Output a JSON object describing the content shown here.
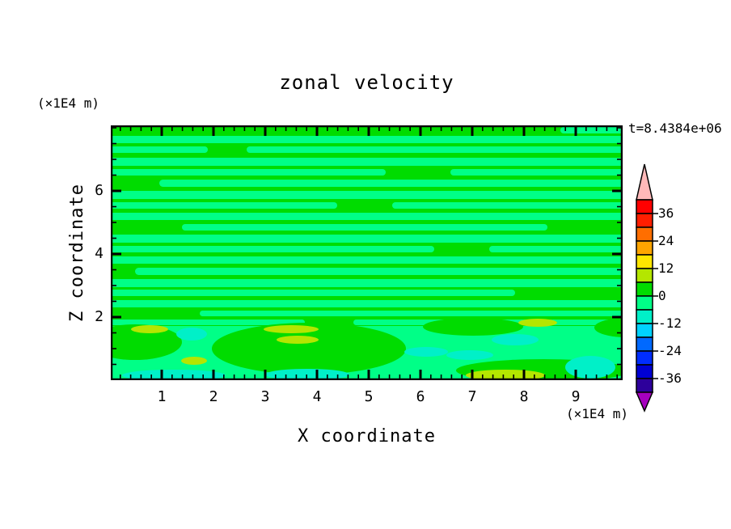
{
  "title": "zonal velocity",
  "timestamp": "t=8.4384e+06",
  "axes": {
    "x_label": "X coordinate",
    "x_unit": "(×1E4 m)",
    "y_label": "Z coordinate",
    "y_unit": "(×1E4 m)",
    "x_tick_labels": [
      "1",
      "2",
      "3",
      "4",
      "5",
      "6",
      "7",
      "8",
      "9"
    ],
    "y_tick_labels": [
      "2",
      "4",
      "6"
    ]
  },
  "colorbar": {
    "tick_labels": [
      "36",
      "24",
      "12",
      "0",
      "-12",
      "-24",
      "-36"
    ],
    "box_colors": [
      "#FF0000",
      "#FF1E00",
      "#FF6E00",
      "#FFA500",
      "#FFE600",
      "#B4E600",
      "#00DC00",
      "#00FF87",
      "#00F0C8",
      "#00D2FF",
      "#0069FF",
      "#002DFF",
      "#0000D2",
      "#2D009B"
    ],
    "over_arrow_color": "#FFB9B9",
    "under_arrow_color": "#A500BE"
  },
  "chart_data": {
    "type": "heatmap",
    "title": "zonal velocity",
    "xlabel": "X coordinate (×1E4 m)",
    "ylabel": "Z coordinate (×1E4 m)",
    "time": "t=8.4384e+06",
    "x_range": [
      0,
      9.9
    ],
    "z_range": [
      0,
      8.1
    ],
    "x_major_ticks": [
      1,
      2,
      3,
      4,
      5,
      6,
      7,
      8,
      9
    ],
    "z_major_ticks": [
      2,
      4,
      6
    ],
    "colorbar_tick_values": [
      36,
      24,
      12,
      0,
      -12,
      -24,
      -36
    ],
    "contour_interval": 6,
    "legend_position": "right",
    "grid": false,
    "description": "Filled-contour plot of zonal velocity. The field oscillates around 0: alternating horizontal streaks of the 0..+6 band (green) and the -6..0 band (spring green) fill most of the domain; in the lower quarter a few patches reach -12..-6 (turquoise) and +6..+12 (yellow-green).",
    "palette": {
      "pos_band": "#00DC00",
      "neg_band": "#00FF87",
      "neg_patch": "#00F0C8",
      "pos_patch": "#B4E600"
    },
    "regions": {
      "neg_band_streaks": [
        [
          2,
          8,
          [
            [
              556,
              653
            ]
          ]
        ],
        [
          13,
          9,
          [
            [
              -20,
              653
            ]
          ]
        ],
        [
          26,
          8,
          [
            [
              -20,
              120
            ],
            [
              168,
              653
            ]
          ]
        ],
        [
          40,
          10,
          [
            [
              -20,
              653
            ]
          ]
        ],
        [
          54,
          8,
          [
            [
              -20,
              340
            ],
            [
              420,
              653
            ]
          ]
        ],
        [
          67,
          9,
          [
            [
              60,
              653
            ]
          ]
        ],
        [
          81,
          10,
          [
            [
              -20,
              653
            ]
          ]
        ],
        [
          95,
          8,
          [
            [
              -20,
              280
            ],
            [
              348,
              653
            ]
          ]
        ],
        [
          108,
          9,
          [
            [
              -20,
              653
            ]
          ]
        ],
        [
          122,
          8,
          [
            [
              88,
              540
            ]
          ]
        ],
        [
          135,
          10,
          [
            [
              -20,
              653
            ]
          ]
        ],
        [
          149,
          8,
          [
            [
              -20,
              400
            ],
            [
              468,
              653
            ]
          ]
        ],
        [
          162,
          9,
          [
            [
              -20,
              653
            ]
          ]
        ],
        [
          176,
          9,
          [
            [
              30,
              653
            ]
          ]
        ],
        [
          190,
          10,
          [
            [
              -20,
              653
            ]
          ]
        ],
        [
          203,
          8,
          [
            [
              -20,
              500
            ]
          ]
        ],
        [
          216,
          9,
          [
            [
              -20,
              653
            ]
          ]
        ],
        [
          229,
          7,
          [
            [
              110,
              653
            ]
          ]
        ],
        [
          240,
          7,
          [
            [
              -20,
              240
            ],
            [
              300,
              653
            ]
          ]
        ]
      ],
      "neg_band_bottom_rect": [
        -20,
        248,
        673,
        67
      ],
      "pos_band_islands": [
        [
          30,
          268,
          58,
          22
        ],
        [
          245,
          276,
          120,
          32
        ],
        [
          448,
          249,
          62,
          11
        ],
        [
          535,
          303,
          108,
          14
        ],
        [
          638,
          250,
          40,
          12
        ]
      ],
      "neg_patch_ellipses": [
        [
          100,
          258,
          19,
          8
        ],
        [
          78,
          309,
          64,
          7
        ],
        [
          243,
          308,
          52,
          7
        ],
        [
          390,
          280,
          27,
          6
        ],
        [
          444,
          284,
          29,
          6
        ],
        [
          500,
          265,
          29,
          7
        ],
        [
          593,
          299,
          31,
          14
        ]
      ],
      "pos_patch_ellipses": [
        [
          48,
          252,
          23,
          5
        ],
        [
          103,
          291,
          16,
          5
        ],
        [
          223,
          252,
          34,
          5
        ],
        [
          231,
          265,
          26,
          5
        ],
        [
          528,
          244,
          24,
          5
        ],
        [
          488,
          309,
          49,
          7
        ]
      ]
    }
  }
}
